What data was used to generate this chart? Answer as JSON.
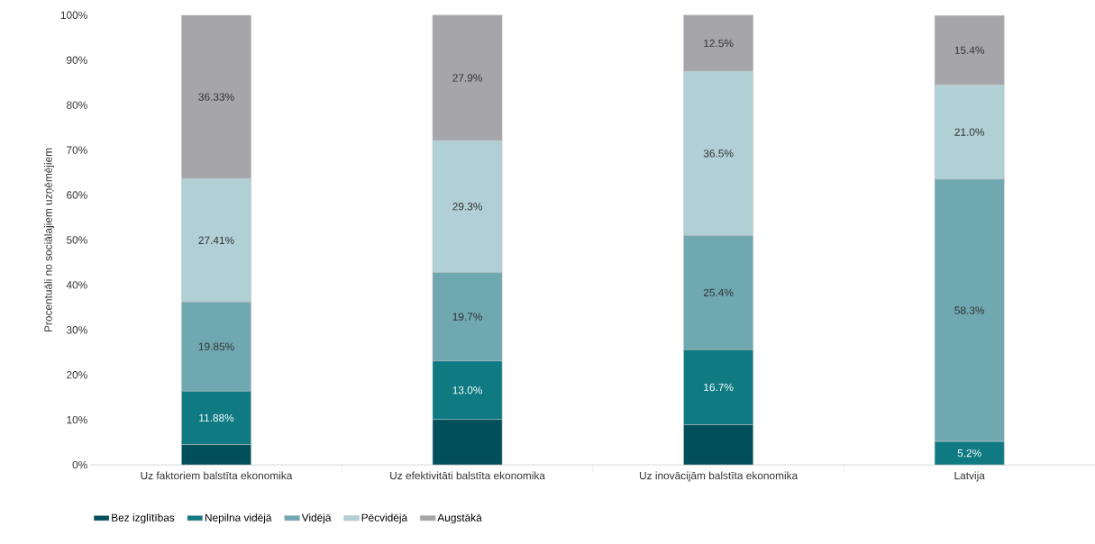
{
  "chart_data": {
    "type": "bar",
    "stacked": true,
    "ylabel": "Procentuāli no sociālajiem uzņēmējiem",
    "categories": [
      "Uz faktoriem balstīta ekonomika",
      "Uz efektivitāti balstīta ekonomika",
      "Uz inovācijām balstīta ekonomika",
      "Latvija"
    ],
    "series": [
      {
        "name": "Bez izglītības",
        "color": "#004f5a",
        "values": [
          4.5,
          10.1,
          8.9,
          0
        ],
        "value_labels": [
          null,
          null,
          null,
          null
        ]
      },
      {
        "name": "Nepilna vidējā",
        "color": "#0f7a82",
        "values": [
          11.88,
          13.0,
          16.7,
          5.2
        ],
        "value_labels": [
          "11.88%",
          "13.0%",
          "16.7%",
          "5.2%"
        ]
      },
      {
        "name": "Vidējā",
        "color": "#70a8b2",
        "values": [
          19.85,
          19.7,
          25.4,
          58.3
        ],
        "value_labels": [
          "19.85%",
          "19.7%",
          "25.4%",
          "58.3%"
        ]
      },
      {
        "name": "Pēcvidējā",
        "color": "#b1d0d6",
        "values": [
          27.41,
          29.3,
          36.5,
          21.0
        ],
        "value_labels": [
          "27.41%",
          "29.3%",
          "36.5%",
          "21.0%"
        ]
      },
      {
        "name": "Augstākā",
        "color": "#a6a6aa",
        "values": [
          36.33,
          27.9,
          12.5,
          15.4
        ],
        "value_labels": [
          "36.33%",
          "27.9%",
          "12.5%",
          "15.4%"
        ]
      }
    ],
    "ylim": [
      0,
      100
    ],
    "yticks": [
      {
        "value": 0,
        "label": "0%"
      },
      {
        "value": 10,
        "label": "10%"
      },
      {
        "value": 20,
        "label": "20%"
      },
      {
        "value": 30,
        "label": "30%"
      },
      {
        "value": 40,
        "label": "40%"
      },
      {
        "value": 50,
        "label": "50%"
      },
      {
        "value": 60,
        "label": "60%"
      },
      {
        "value": 70,
        "label": "70%"
      },
      {
        "value": 80,
        "label": "80%"
      },
      {
        "value": 90,
        "label": "90%"
      },
      {
        "value": 100,
        "label": "100%"
      }
    ],
    "legend": "bottom"
  }
}
